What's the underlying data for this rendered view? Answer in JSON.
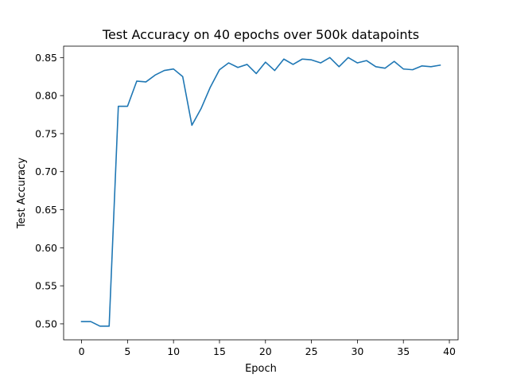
{
  "chart_data": {
    "type": "line",
    "title": "Test Accuracy on 40 epochs over 500k datapoints",
    "xlabel": "Epoch",
    "ylabel": "Test Accuracy",
    "xlim": [
      -1.95,
      40.95
    ],
    "ylim": [
      0.479,
      0.865
    ],
    "xticks": [
      0,
      5,
      10,
      15,
      20,
      25,
      30,
      35,
      40
    ],
    "yticks": [
      0.5,
      0.55,
      0.6,
      0.65,
      0.7,
      0.75,
      0.8,
      0.85
    ],
    "grid": false,
    "series": [
      {
        "color": "#1f77b4",
        "x": [
          0,
          1,
          2,
          3,
          4,
          5,
          6,
          7,
          8,
          9,
          10,
          11,
          12,
          13,
          14,
          15,
          16,
          17,
          18,
          19,
          20,
          21,
          22,
          23,
          24,
          25,
          26,
          27,
          28,
          29,
          30,
          31,
          32,
          33,
          34,
          35,
          36,
          37,
          38,
          39
        ],
        "values": [
          0.503,
          0.503,
          0.497,
          0.497,
          0.786,
          0.786,
          0.819,
          0.818,
          0.827,
          0.833,
          0.835,
          0.825,
          0.761,
          0.783,
          0.811,
          0.834,
          0.843,
          0.837,
          0.841,
          0.829,
          0.844,
          0.833,
          0.848,
          0.841,
          0.848,
          0.847,
          0.843,
          0.85,
          0.838,
          0.85,
          0.843,
          0.846,
          0.838,
          0.836,
          0.845,
          0.835,
          0.834,
          0.839,
          0.838,
          0.84
        ]
      }
    ]
  }
}
